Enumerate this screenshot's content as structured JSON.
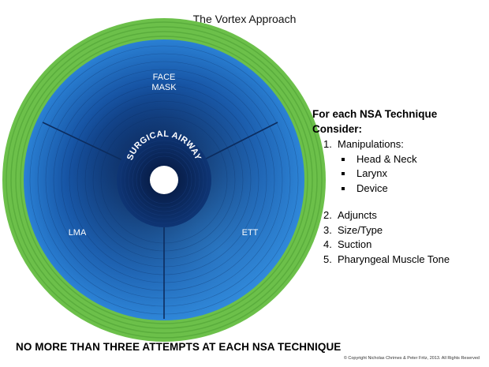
{
  "title": "The Vortex Approach",
  "vortex": {
    "outer_label": "SURGICAL AIRWAY",
    "zones": [
      {
        "line1": "FACE",
        "line2": "MASK"
      },
      {
        "label": "LMA"
      },
      {
        "label": "ETT"
      }
    ],
    "colors": {
      "green_ring": "#6cc04a",
      "green_ring_dark": "#4e9a36",
      "blue_outer": "#2a7fd1",
      "blue_inner": "#0d2a5a",
      "center": "#ffffff"
    }
  },
  "panel": {
    "heading": "For each NSA Technique Consider:",
    "manipulations": {
      "num": "1.",
      "label": "Manipulations:",
      "bullets": [
        "Head & Neck",
        "Larynx",
        "Device"
      ]
    },
    "items": [
      {
        "num": "2.",
        "label": "Adjuncts"
      },
      {
        "num": "3.",
        "label": "Size/Type"
      },
      {
        "num": "4.",
        "label": "Suction"
      },
      {
        "num": "5.",
        "label": "Pharyngeal Muscle Tone"
      }
    ]
  },
  "footer": "NO MORE THAN THREE ATTEMPTS AT EACH NSA TECHNIQUE",
  "copyright": "© Copyright Nicholas Chrimes & Peter Fritz, 2013. All Rights Reserved"
}
